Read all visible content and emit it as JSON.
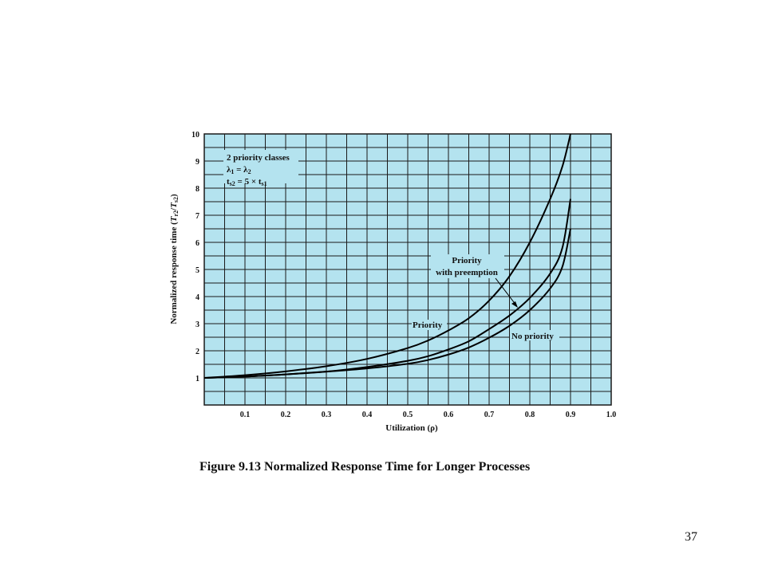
{
  "slide": {
    "caption": "Figure 9.13 Normalized Response Time for Longer Processes",
    "page_number": "37"
  },
  "chart_data": {
    "type": "line",
    "ylabel_main": "Normalized response time (",
    "ylabel_T": "T",
    "ylabel_r": "r2",
    "ylabel_slash": "/",
    "ylabel_s": "s2",
    "ylabel_close": ")",
    "xlabel": "Utilization (ρ)",
    "xlim": [
      0,
      1.0
    ],
    "ylim": [
      0,
      10
    ],
    "x_ticks": [
      "0.1",
      "0.2",
      "0.3",
      "0.4",
      "0.5",
      "0.6",
      "0.7",
      "0.8",
      "0.9",
      "1.0"
    ],
    "y_ticks": [
      "1",
      "2",
      "3",
      "4",
      "5",
      "6",
      "7",
      "8",
      "9",
      "10"
    ],
    "grid": true,
    "colors": {
      "plot_background": "#b4e3ef",
      "grid": "#1a1a1a",
      "curve": "#000000"
    },
    "legend_box": {
      "line1": "2 priority classes",
      "line2_l1": "λ",
      "line2_sub1": "1",
      "line2_eq": " = λ",
      "line2_sub2": "2",
      "line3_t": "t",
      "line3_sub1": "s2",
      "line3_mid": " = 5 × t",
      "line3_sub2": "s1"
    },
    "series": [
      {
        "name": "Priority",
        "points": [
          [
            0,
            1
          ],
          [
            0.1,
            1.1
          ],
          [
            0.2,
            1.24
          ],
          [
            0.3,
            1.43
          ],
          [
            0.4,
            1.7
          ],
          [
            0.5,
            2.1
          ],
          [
            0.55,
            2.38
          ],
          [
            0.6,
            2.75
          ],
          [
            0.65,
            3.2
          ],
          [
            0.7,
            3.85
          ],
          [
            0.75,
            4.75
          ],
          [
            0.8,
            6.0
          ],
          [
            0.85,
            7.6
          ],
          [
            0.88,
            8.8
          ],
          [
            0.9,
            10
          ]
        ]
      },
      {
        "name": "Priority with preemption",
        "points": [
          [
            0,
            1
          ],
          [
            0.1,
            1.05
          ],
          [
            0.2,
            1.13
          ],
          [
            0.3,
            1.23
          ],
          [
            0.4,
            1.4
          ],
          [
            0.5,
            1.63
          ],
          [
            0.55,
            1.8
          ],
          [
            0.6,
            2.05
          ],
          [
            0.65,
            2.35
          ],
          [
            0.7,
            2.8
          ],
          [
            0.75,
            3.3
          ],
          [
            0.8,
            3.95
          ],
          [
            0.85,
            4.85
          ],
          [
            0.88,
            5.8
          ],
          [
            0.9,
            7.6
          ]
        ]
      },
      {
        "name": "No priority",
        "points": [
          [
            0,
            1
          ],
          [
            0.1,
            1.05
          ],
          [
            0.2,
            1.13
          ],
          [
            0.3,
            1.23
          ],
          [
            0.4,
            1.35
          ],
          [
            0.5,
            1.52
          ],
          [
            0.55,
            1.66
          ],
          [
            0.6,
            1.86
          ],
          [
            0.65,
            2.12
          ],
          [
            0.7,
            2.48
          ],
          [
            0.75,
            2.92
          ],
          [
            0.8,
            3.5
          ],
          [
            0.85,
            4.3
          ],
          [
            0.88,
            5.1
          ],
          [
            0.9,
            6.5
          ]
        ]
      }
    ]
  }
}
